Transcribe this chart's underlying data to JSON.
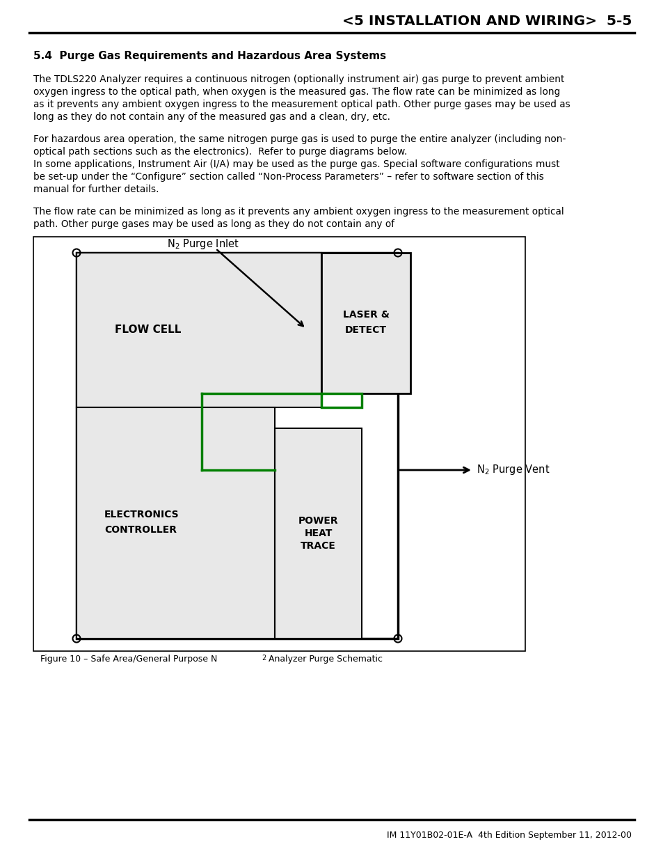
{
  "title": "<5 INSTALLATION AND WIRING>  5-5",
  "section_title": "5.4  Purge Gas Requirements and Hazardous Area Systems",
  "p1_lines": [
    "The TDLS220 Analyzer requires a continuous nitrogen (optionally instrument air) gas purge to prevent ambient",
    "oxygen ingress to the optical path, when oxygen is the measured gas. The flow rate can be minimized as long",
    "as it prevents any ambient oxygen ingress to the measurement optical path. Other purge gases may be used as",
    "long as they do not contain any of the measured gas and a clean, dry, etc."
  ],
  "p2_lines": [
    "For hazardous area operation, the same nitrogen purge gas is used to purge the entire analyzer (including non-",
    "optical path sections such as the electronics).  Refer to purge diagrams below.",
    "In some applications, Instrument Air (I/A) may be used as the purge gas. Special software configurations must",
    "be set-up under the “Configure” section called “Non-Process Parameters” – refer to software section of this",
    "manual for further details."
  ],
  "p3_lines": [
    "The flow rate can be minimized as long as it prevents any ambient oxygen ingress to the measurement optical",
    "path. Other purge gases may be used as long as they do not contain any of"
  ],
  "figure_caption": "Figure 10 – Safe Area/General Purpose N₂ Analyzer Purge Schematic",
  "footer": "IM 11Y01B02-01E-A  4th Edition September 11, 2012-00",
  "box_fill": "#e8e8e8",
  "green_color": "#008000"
}
